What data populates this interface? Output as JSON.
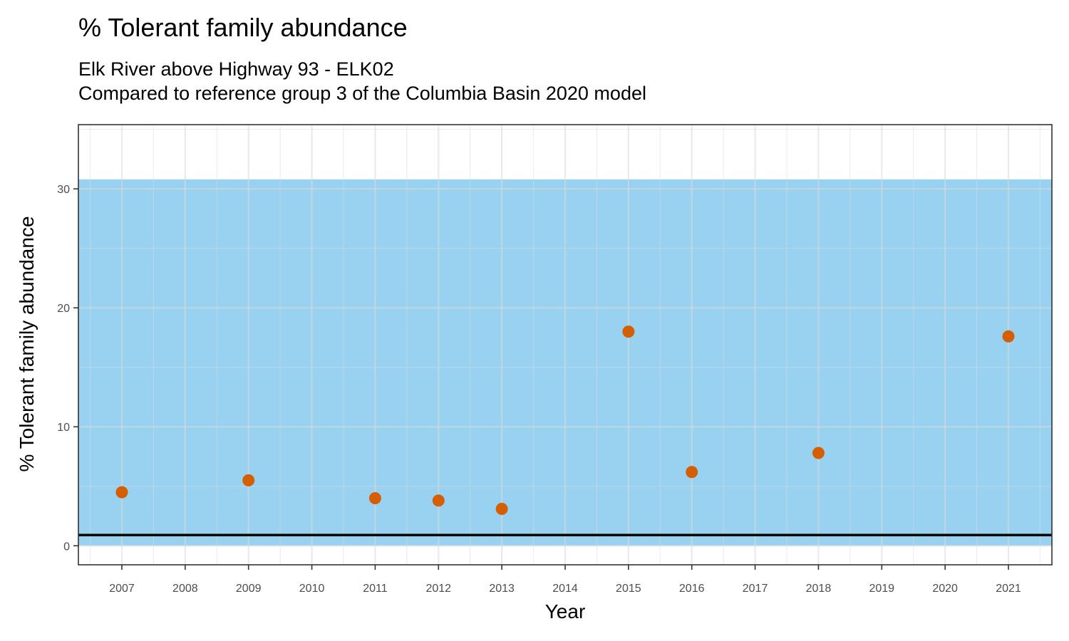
{
  "chart_data": {
    "type": "scatter",
    "title": "% Tolerant family abundance",
    "subtitle_lines": [
      "Elk River above Highway 93 - ELK02",
      "Compared to reference group 3 of the Columbia Basin 2020 model"
    ],
    "xlabel": "Year",
    "ylabel": "% Tolerant family abundance",
    "x_ticks": [
      "2007",
      "2008",
      "2009",
      "2010",
      "2011",
      "2012",
      "2013",
      "2014",
      "2015",
      "2016",
      "2017",
      "2018",
      "2019",
      "2020",
      "2021"
    ],
    "y_ticks": [
      0,
      10,
      20,
      30
    ],
    "ylim": [
      -1.6,
      35.4
    ],
    "points": [
      {
        "x": "2007",
        "y": 4.5
      },
      {
        "x": "2009",
        "y": 5.5
      },
      {
        "x": "2011",
        "y": 4.0
      },
      {
        "x": "2012",
        "y": 3.8
      },
      {
        "x": "2013",
        "y": 3.1
      },
      {
        "x": "2015",
        "y": 18.0
      },
      {
        "x": "2016",
        "y": 6.2
      },
      {
        "x": "2018",
        "y": 7.8
      },
      {
        "x": "2021",
        "y": 17.6
      }
    ],
    "reference_band": {
      "ymin": 0,
      "ymax": 30.8,
      "color": "#8ecdf0"
    },
    "reference_line": {
      "y": 0.9,
      "color": "#000000"
    },
    "point_color": "#d55e00",
    "grid": true
  }
}
